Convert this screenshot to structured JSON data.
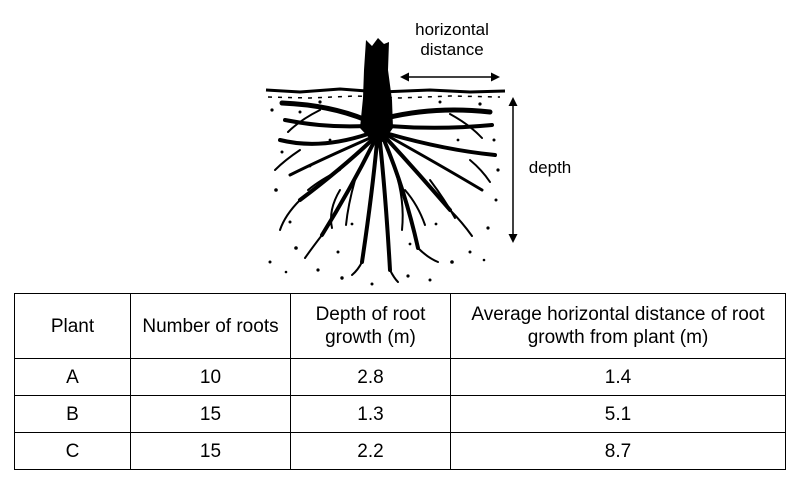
{
  "figure": {
    "label_horizontal": "horizontal distance",
    "label_depth": "depth"
  },
  "table": {
    "headers": [
      "Plant",
      "Number of roots",
      "Depth of root growth (m)",
      "Average horizontal distance of root growth from plant (m)"
    ],
    "rows": [
      [
        "A",
        "10",
        "2.8",
        "1.4"
      ],
      [
        "B",
        "15",
        "1.3",
        "5.1"
      ],
      [
        "C",
        "15",
        "2.2",
        "8.7"
      ]
    ]
  }
}
